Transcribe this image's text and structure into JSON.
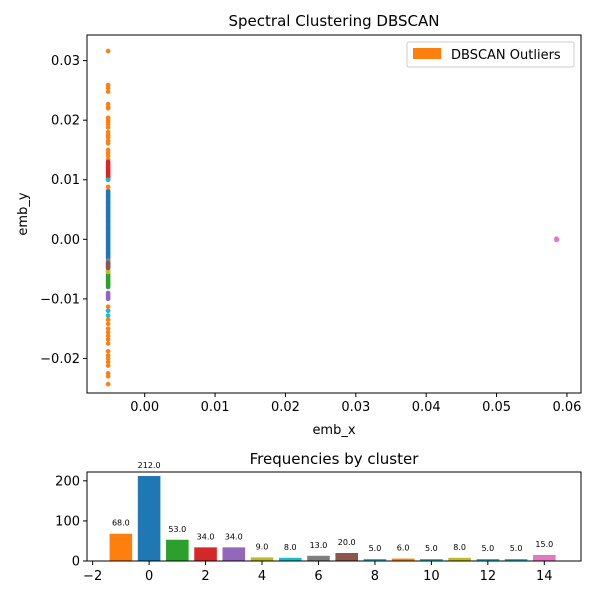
{
  "chart_data": [
    {
      "type": "scatter",
      "title": "Spectral Clustering DBSCAN",
      "xlabel": "emb_x",
      "ylabel": "emb_y",
      "xlim": [
        -0.0082,
        0.062
      ],
      "ylim": [
        -0.0258,
        0.0343
      ],
      "x_ticks": [
        0.0,
        0.01,
        0.02,
        0.03,
        0.04,
        0.05,
        0.06
      ],
      "x_tick_labels": [
        "0.00",
        "0.01",
        "0.02",
        "0.03",
        "0.04",
        "0.05",
        "0.06"
      ],
      "y_ticks": [
        -0.02,
        -0.01,
        0.0,
        0.01,
        0.02,
        0.03
      ],
      "y_tick_labels": [
        "−0.02",
        "−0.01",
        "0.00",
        "0.01",
        "0.02",
        "0.03"
      ],
      "legend": {
        "placement": "top-right",
        "entries": [
          {
            "label": "DBSCAN Outliers",
            "color": "#ff7f0e"
          }
        ]
      },
      "grid": false,
      "series": [
        {
          "cluster": -1,
          "color": "#ff7f0e",
          "points": [
            [
              -0.0052,
              0.0316
            ],
            [
              -0.0052,
              0.0259
            ],
            [
              -0.0052,
              0.0254
            ],
            [
              -0.0052,
              0.0248
            ],
            [
              -0.0052,
              0.0227
            ],
            [
              -0.0052,
              0.0222
            ],
            [
              -0.0052,
              0.022
            ],
            [
              -0.0052,
              0.0204
            ],
            [
              -0.0052,
              0.02
            ],
            [
              -0.0052,
              0.0197
            ],
            [
              -0.0052,
              0.0193
            ],
            [
              -0.0052,
              0.0188
            ],
            [
              -0.0052,
              0.018
            ],
            [
              -0.0052,
              0.0175
            ],
            [
              -0.0052,
              0.0171
            ],
            [
              -0.0052,
              0.0165
            ],
            [
              -0.0052,
              0.0161
            ],
            [
              -0.0052,
              0.015
            ],
            [
              -0.0052,
              0.0145
            ],
            [
              -0.0052,
              0.014
            ],
            [
              -0.0052,
              0.0134
            ],
            [
              -0.0052,
              0.0088
            ],
            [
              -0.0052,
              0.0082
            ],
            [
              -0.0052,
              -0.0048
            ],
            [
              -0.0052,
              -0.0054
            ],
            [
              -0.0052,
              -0.0113
            ],
            [
              -0.0052,
              -0.012
            ],
            [
              -0.0052,
              -0.0128
            ],
            [
              -0.0052,
              -0.0135
            ],
            [
              -0.0052,
              -0.0142
            ],
            [
              -0.0052,
              -0.015
            ],
            [
              -0.0052,
              -0.0156
            ],
            [
              -0.0052,
              -0.0162
            ],
            [
              -0.0052,
              -0.0168
            ],
            [
              -0.0052,
              -0.0175
            ],
            [
              -0.0052,
              -0.0188
            ],
            [
              -0.0052,
              -0.0195
            ],
            [
              -0.0052,
              -0.02
            ],
            [
              -0.0052,
              -0.0206
            ],
            [
              -0.0052,
              -0.0212
            ],
            [
              -0.0052,
              -0.0225
            ],
            [
              -0.0052,
              -0.023
            ],
            [
              -0.0052,
              -0.0243
            ]
          ]
        },
        {
          "cluster": 0,
          "color": "#1f77b4",
          "range": [
            -0.0032,
            0.008
          ]
        },
        {
          "cluster": 1,
          "color": "#2ca02c",
          "range": [
            -0.008,
            -0.0058
          ]
        },
        {
          "cluster": 2,
          "color": "#d62728",
          "range": [
            0.01,
            0.013
          ]
        },
        {
          "cluster": 3,
          "color": "#9467bd",
          "range": [
            -0.01,
            -0.009
          ]
        },
        {
          "cluster": 4,
          "color": "#bcbd22",
          "range": [
            -0.0055,
            -0.005
          ]
        },
        {
          "cluster": 5,
          "color": "#17becf",
          "points": [
            [
              -0.0052,
              0.01
            ],
            [
              -0.0052,
              -0.012
            ],
            [
              -0.0052,
              -0.0128
            ]
          ]
        },
        {
          "cluster": 6,
          "color": "#7f7f7f",
          "range": [
            -0.0045,
            -0.0035
          ]
        },
        {
          "cluster": 7,
          "color": "#8c564b",
          "range": [
            -0.0048,
            -0.004
          ]
        },
        {
          "cluster": 14,
          "color": "#e377c2",
          "points": [
            [
              0.0585,
              0.0001
            ],
            [
              0.0585,
              -0.0001
            ],
            [
              0.0586,
              0.0
            ]
          ]
        }
      ]
    },
    {
      "type": "bar",
      "title": "Frequencies by cluster",
      "xlim": [
        -2.2,
        15.3
      ],
      "ylim": [
        0,
        222
      ],
      "x_ticks": [
        -2,
        0,
        2,
        4,
        6,
        8,
        10,
        12,
        14
      ],
      "x_tick_labels": [
        "−2",
        "0",
        "2",
        "4",
        "6",
        "8",
        "10",
        "12",
        "14"
      ],
      "y_ticks": [
        0,
        100,
        200
      ],
      "y_tick_labels": [
        "0",
        "100",
        "200"
      ],
      "categories": [
        -1,
        0,
        1,
        2,
        3,
        4,
        5,
        6,
        7,
        8,
        9,
        10,
        11,
        12,
        13,
        14
      ],
      "values": [
        68,
        212,
        53,
        34,
        34,
        9,
        8,
        13,
        20,
        5,
        6,
        5,
        8,
        5,
        5,
        15
      ],
      "value_labels": [
        "68.0",
        "212.0",
        "53.0",
        "34.0",
        "34.0",
        "9.0",
        "8.0",
        "13.0",
        "20.0",
        "5.0",
        "6.0",
        "5.0",
        "8.0",
        "5.0",
        "5.0",
        "15.0"
      ],
      "colors": [
        "#ff7f0e",
        "#1f77b4",
        "#2ca02c",
        "#d62728",
        "#9467bd",
        "#bcbd22",
        "#17becf",
        "#7f7f7f",
        "#8c564b",
        "#17becf",
        "#ff7f0e",
        "#17becf",
        "#bcbd22",
        "#17becf",
        "#17becf",
        "#e377c2"
      ]
    }
  ]
}
